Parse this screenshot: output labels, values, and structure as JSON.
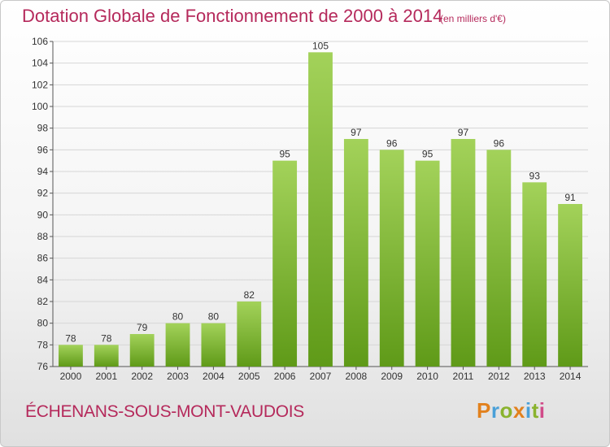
{
  "header": {
    "title": "Dotation Globale de Fonctionnement de 2000 à 2014",
    "subtitle": "(en milliers d'€)"
  },
  "footer": {
    "commune": "ÉCHENANS-SOUS-MONT-VAUDOIS",
    "logo": "Proxiti"
  },
  "colors": {
    "title": "#b5295b",
    "bar_top": "#a3d25a",
    "bar_bottom": "#5f9a18"
  },
  "chart_data": {
    "type": "bar",
    "categories": [
      "2000",
      "2001",
      "2002",
      "2003",
      "2004",
      "2005",
      "2006",
      "2007",
      "2008",
      "2009",
      "2010",
      "2011",
      "2012",
      "2013",
      "2014"
    ],
    "values": [
      78,
      78,
      79,
      80,
      80,
      82,
      95,
      105,
      97,
      96,
      95,
      97,
      96,
      93,
      91
    ],
    "title": "Dotation Globale de Fonctionnement de 2000 à 2014",
    "subtitle": "(en milliers d'€)",
    "ylim": [
      76,
      106
    ],
    "yticks": [
      76,
      78,
      80,
      82,
      84,
      86,
      88,
      90,
      92,
      94,
      96,
      98,
      100,
      102,
      104,
      106
    ],
    "grid": true
  }
}
